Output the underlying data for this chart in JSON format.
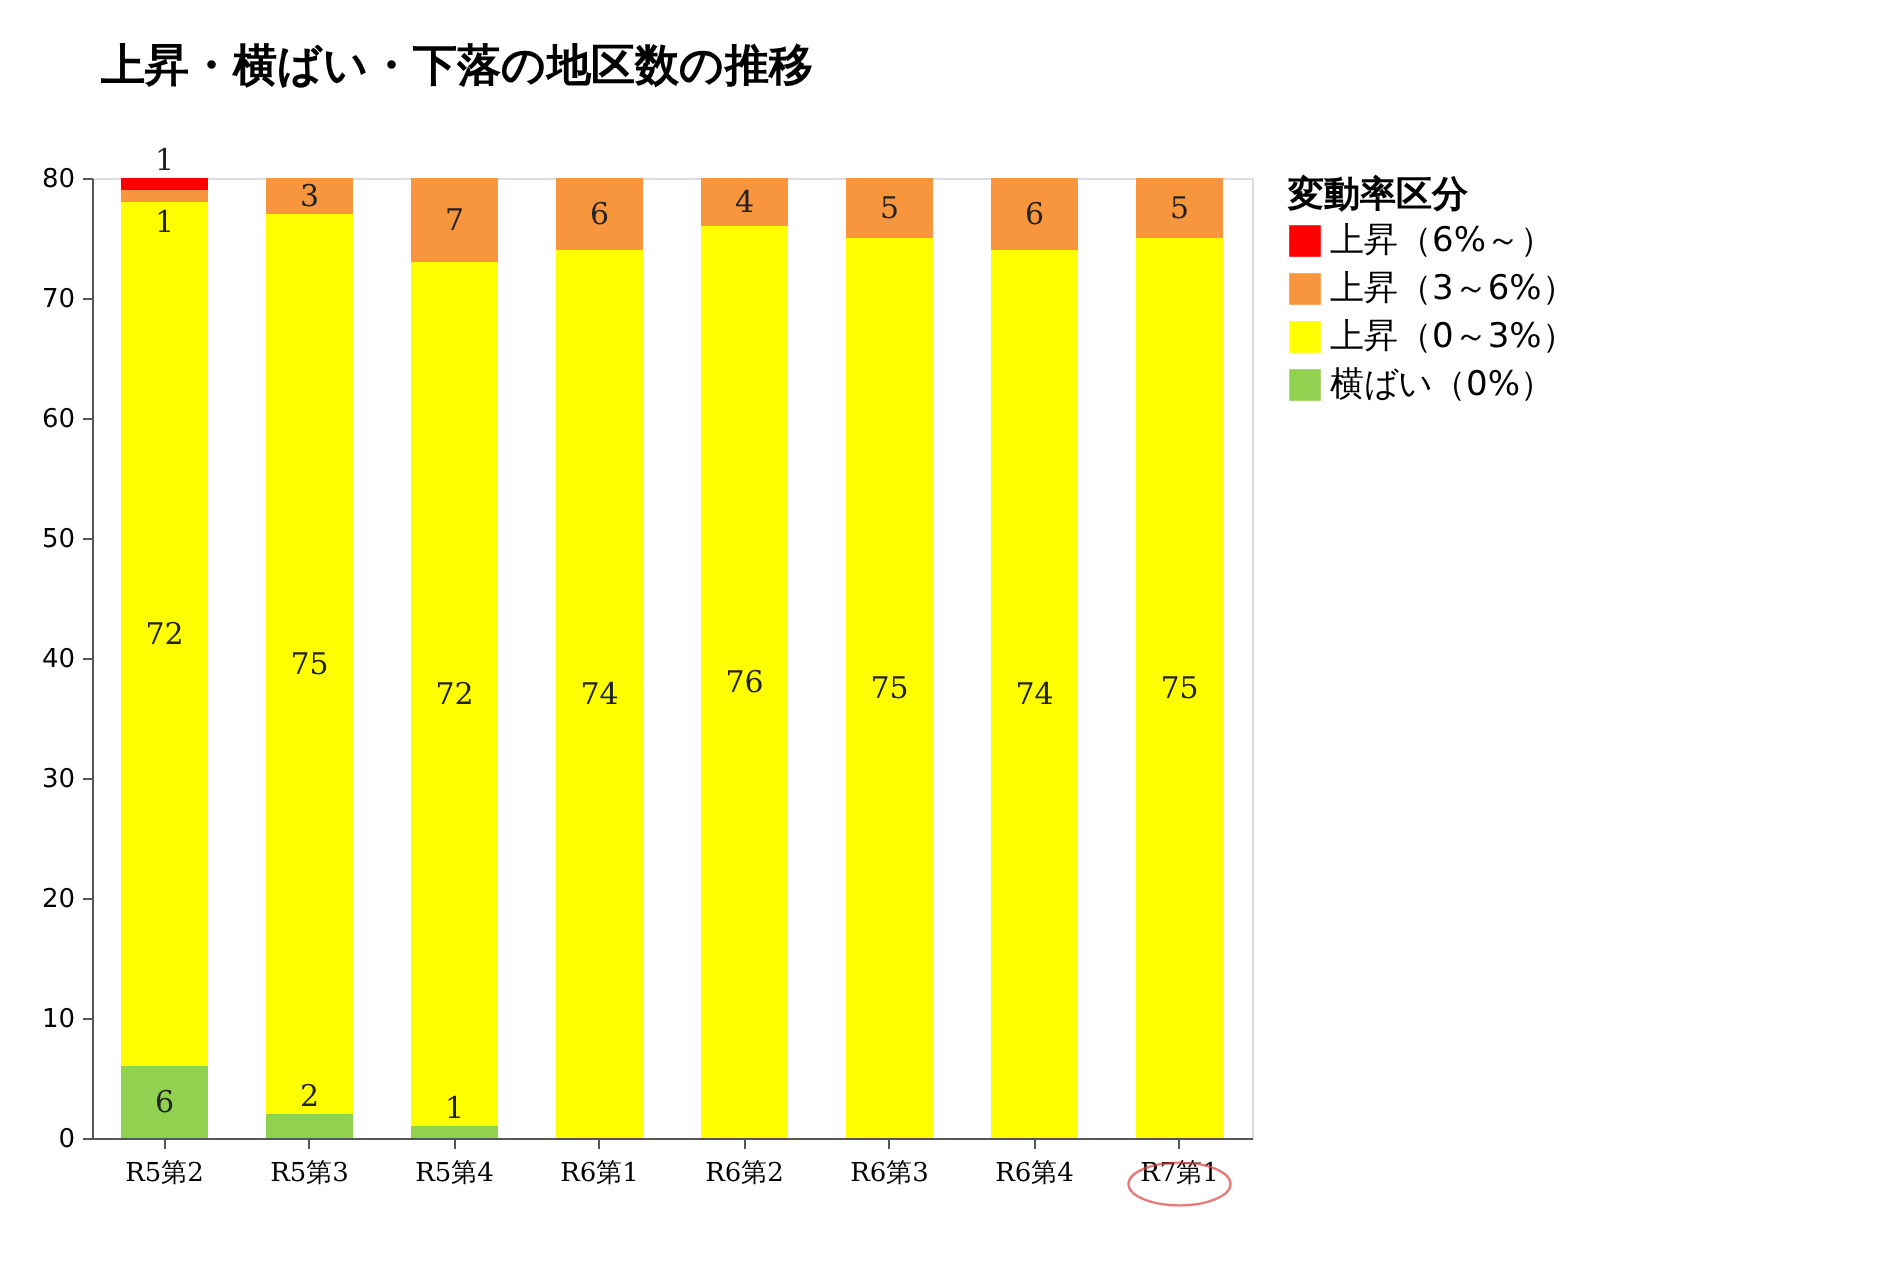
{
  "chart_data": {
    "type": "bar",
    "title": "上昇・横ばい・下落の地区数の推移",
    "legend_title": "変動率区分",
    "categories": [
      "R5第2",
      "R5第3",
      "R5第4",
      "R6第1",
      "R6第2",
      "R6第3",
      "R6第4",
      "R7第1"
    ],
    "stacked": true,
    "series": [
      {
        "name": "横ばい（0%）",
        "color": "#92d050",
        "values": [
          6,
          2,
          1,
          0,
          0,
          0,
          0,
          0
        ],
        "value_labels": [
          "6",
          "2",
          "1",
          null,
          null,
          null,
          null,
          null
        ]
      },
      {
        "name": "上昇（0～3%）",
        "color": "#ffff00",
        "values": [
          72,
          75,
          72,
          74,
          76,
          75,
          74,
          75
        ],
        "value_labels": [
          "72",
          "75",
          "72",
          "74",
          "76",
          "75",
          "74",
          "75"
        ]
      },
      {
        "name": "上昇（3～6%）",
        "color": "#f7963c",
        "values": [
          1,
          3,
          7,
          6,
          4,
          5,
          6,
          5
        ],
        "value_labels": [
          "1",
          "3",
          "7",
          "6",
          "4",
          "5",
          "6",
          "5"
        ]
      },
      {
        "name": "上昇（6%～）",
        "color": "#ff0000",
        "values": [
          1,
          0,
          0,
          0,
          0,
          0,
          0,
          0
        ],
        "value_labels": [
          "1",
          null,
          null,
          null,
          null,
          null,
          null,
          null
        ]
      }
    ],
    "ylim": [
      0,
      80
    ],
    "yticks": [
      0,
      10,
      20,
      30,
      40,
      50,
      60,
      70,
      80
    ],
    "grid": false,
    "legend": "right"
  }
}
